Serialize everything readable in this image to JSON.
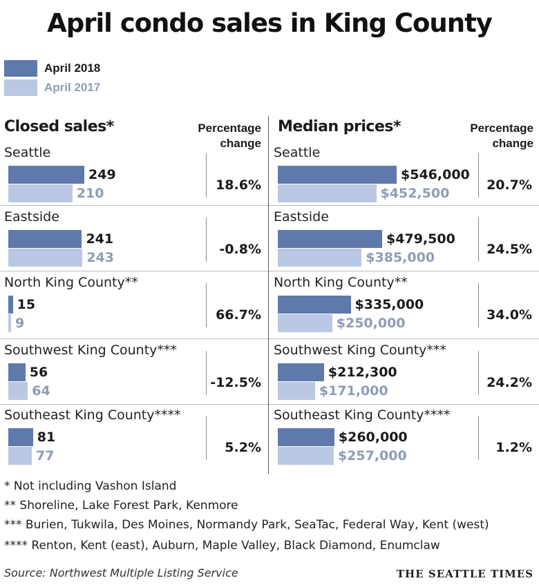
{
  "title": "April condo sales in King County",
  "legend": [
    {
      "label": "April 2018",
      "color": "#5f79ad",
      "text_color": "#1a1a1a"
    },
    {
      "label": "April 2017",
      "color": "#bac8e3",
      "text_color": "#8e9cb6"
    }
  ],
  "chart_data": [
    {
      "type": "bar",
      "title": "Closed sales*",
      "pct_header": "Percentage change",
      "categories": [
        "Seattle",
        "Eastside",
        "North King County**",
        "Southwest King County***",
        "Southeast King County****"
      ],
      "series": [
        {
          "name": "April 2018",
          "values": [
            249,
            241,
            15,
            56,
            81
          ]
        },
        {
          "name": "April 2017",
          "values": [
            210,
            243,
            9,
            64,
            77
          ]
        }
      ],
      "value_labels_2018": [
        "249",
        "241",
        "15",
        "56",
        "81"
      ],
      "value_labels_2017": [
        "210",
        "243",
        "9",
        "64",
        "77"
      ],
      "percentage_change": [
        "18.6%",
        "-0.8%",
        "66.7%",
        "-12.5%",
        "5.2%"
      ],
      "xlim": [
        0,
        249
      ]
    },
    {
      "type": "bar",
      "title": "Median prices*",
      "pct_header": "Percentage change",
      "categories": [
        "Seattle",
        "Eastside",
        "North King County**",
        "Southwest King County***",
        "Southeast King County****"
      ],
      "series": [
        {
          "name": "April 2018",
          "values": [
            546000,
            479500,
            335000,
            212300,
            260000
          ]
        },
        {
          "name": "April 2017",
          "values": [
            452500,
            385000,
            250000,
            171000,
            257000
          ]
        }
      ],
      "value_labels_2018": [
        "$546,000",
        "$479,500",
        "$335,000",
        "$212,300",
        "$260,000"
      ],
      "value_labels_2017": [
        "$452,500",
        "$385,000",
        "$250,000",
        "$171,000",
        "$257,000"
      ],
      "percentage_change": [
        "20.7%",
        "24.5%",
        "34.0%",
        "24.2%",
        "1.2%"
      ],
      "xlim": [
        0,
        546000
      ]
    }
  ],
  "notes": [
    "* Not including Vashon Island",
    "**  Shoreline, Lake Forest Park, Kenmore",
    "*** Burien, Tukwila, Des Moines, Normandy Park, SeaTac, Federal Way, Kent (west)",
    "**** Renton, Kent (east), Auburn, Maple Valley, Black Diamond, Enumclaw"
  ],
  "source": "Source: Northwest Multiple Listing Service",
  "brand": "THE SEATTLE TIMES"
}
